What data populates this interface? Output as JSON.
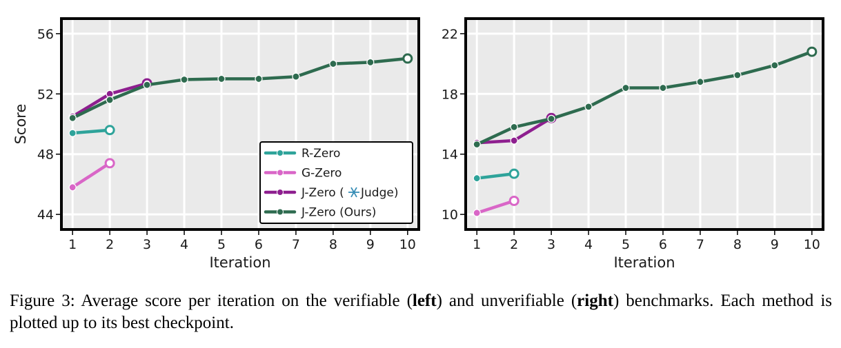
{
  "chart_data": [
    {
      "type": "line",
      "xlabel": "Iteration",
      "ylabel": "Score",
      "x_ticks": [
        "1",
        "2",
        "3",
        "4",
        "5",
        "6",
        "7",
        "8",
        "9",
        "10"
      ],
      "y_ticks": [
        "44",
        "48",
        "52",
        "56"
      ],
      "xlim": [
        0.7,
        10.3
      ],
      "ylim": [
        43.0,
        57.0
      ],
      "grid": true,
      "legend_position": "lower-right",
      "series": [
        {
          "name": "R-Zero",
          "color": "#2ea39a",
          "x": [
            1,
            2
          ],
          "y": [
            49.4,
            49.6
          ],
          "best_x": 2
        },
        {
          "name": "G-Zero",
          "color": "#d966c7",
          "x": [
            1,
            2
          ],
          "y": [
            45.8,
            47.4
          ],
          "best_x": 2
        },
        {
          "name": "J-Zero (❄ Judge)",
          "name_prefix": "J-Zero (",
          "name_suffix": "Judge)",
          "icon": "snowflake-icon",
          "color": "#8e1f8f",
          "x": [
            1,
            2,
            3
          ],
          "y": [
            50.5,
            52.0,
            52.7
          ],
          "best_x": 3
        },
        {
          "name": "J-Zero (Ours)",
          "color": "#2e6b4f",
          "x": [
            1,
            2,
            3,
            4,
            5,
            6,
            7,
            8,
            9,
            10
          ],
          "y": [
            50.4,
            51.6,
            52.6,
            52.95,
            53.0,
            53.0,
            53.15,
            54.0,
            54.1,
            54.35
          ],
          "best_x": 10
        }
      ]
    },
    {
      "type": "line",
      "xlabel": "Iteration",
      "ylabel": "",
      "x_ticks": [
        "1",
        "2",
        "3",
        "4",
        "5",
        "6",
        "7",
        "8",
        "9",
        "10"
      ],
      "y_ticks": [
        "10",
        "14",
        "18",
        "22"
      ],
      "xlim": [
        0.7,
        10.3
      ],
      "ylim": [
        9.0,
        23.0
      ],
      "grid": true,
      "series": [
        {
          "name": "R-Zero",
          "color": "#2ea39a",
          "x": [
            1,
            2
          ],
          "y": [
            12.4,
            12.7
          ],
          "best_x": 2
        },
        {
          "name": "G-Zero",
          "color": "#d966c7",
          "x": [
            1,
            2
          ],
          "y": [
            10.1,
            10.9
          ],
          "best_x": 2
        },
        {
          "name": "J-Zero (❄ Judge)",
          "color": "#8e1f8f",
          "x": [
            1,
            2,
            3
          ],
          "y": [
            14.75,
            14.9,
            16.4
          ],
          "best_x": 3
        },
        {
          "name": "J-Zero (Ours)",
          "color": "#2e6b4f",
          "x": [
            1,
            2,
            3,
            4,
            5,
            6,
            7,
            8,
            9,
            10
          ],
          "y": [
            14.65,
            15.8,
            16.35,
            17.15,
            18.4,
            18.4,
            18.8,
            19.25,
            19.9,
            20.8
          ],
          "best_x": 10
        }
      ]
    }
  ],
  "caption": {
    "label": "Figure 3:",
    "part1": " Average score per iteration on the verifiable (",
    "bold1": "left",
    "part2": ") and unverifiable (",
    "bold2": "right",
    "part3": ") benchmarks. Each method is plotted up to its best checkpoint."
  }
}
